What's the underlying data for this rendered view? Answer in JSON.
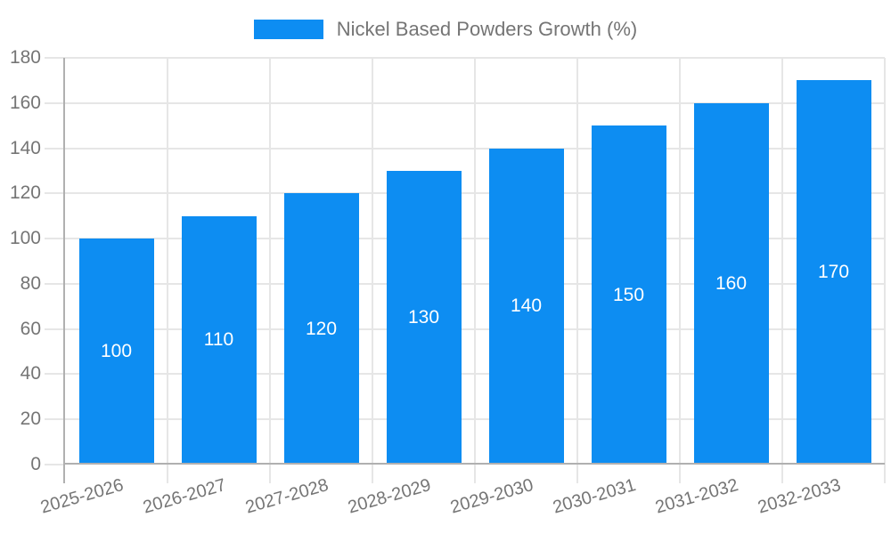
{
  "chart_data": {
    "type": "bar",
    "legend": "Nickel Based Powders Growth (%)",
    "categories": [
      "2025-2026",
      "2026-2027",
      "2027-2028",
      "2028-2029",
      "2029-2030",
      "2030-2031",
      "2031-2032",
      "2032-2033"
    ],
    "values": [
      100,
      110,
      120,
      130,
      140,
      150,
      160,
      170
    ],
    "bar_labels": [
      "100",
      "110",
      "120",
      "130",
      "140",
      "150",
      "160",
      "170"
    ],
    "yticks": [
      0,
      20,
      40,
      60,
      80,
      100,
      120,
      140,
      160,
      180
    ],
    "ylim": [
      0,
      180
    ],
    "xlabel": "",
    "ylabel": "",
    "grid": "on",
    "legend_position": "top-center",
    "x_label_rotation_deg": -16,
    "colors": {
      "bar": "#0D8DF2",
      "grid": "#e6e6e6",
      "axis": "#b0b0b0",
      "tick_text": "#757575",
      "bar_label_text": "#ffffff",
      "background": "#ffffff"
    }
  }
}
